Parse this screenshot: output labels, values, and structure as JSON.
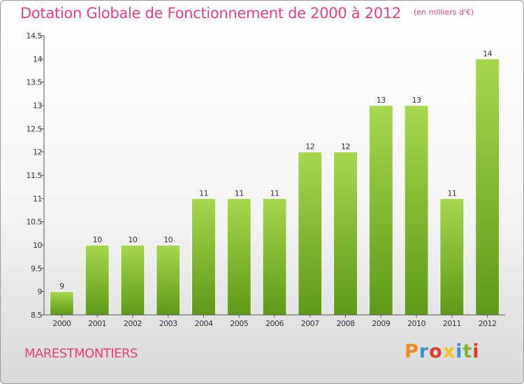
{
  "header": {
    "title": "Dotation Globale de Fonctionnement de 2000 à 2012",
    "unit": "(en milliers d'€)"
  },
  "footer": {
    "commune": "MARESTMONTIERS",
    "logo_letters": [
      "P",
      "r",
      "o",
      "x",
      "i",
      "t",
      "i"
    ]
  },
  "colors": {
    "title": "#e8407a",
    "bar_light": "#a6d84c",
    "bar_dark": "#5e9a18",
    "logo": [
      "#f08a1e",
      "#3a8fd4",
      "#e23a2c",
      "#f2c21e",
      "#3a8fd4",
      "#7ab82a",
      "#e23a2c"
    ]
  },
  "chart_data": {
    "type": "bar",
    "categories": [
      "2000",
      "2001",
      "2002",
      "2003",
      "2004",
      "2005",
      "2006",
      "2007",
      "2008",
      "2009",
      "2010",
      "2011",
      "2012"
    ],
    "values": [
      9,
      10,
      10,
      10,
      11,
      11,
      11,
      12,
      12,
      13,
      13,
      11,
      14
    ],
    "value_labels": [
      "9",
      "10",
      "10",
      "10",
      "11",
      "11",
      "11",
      "12",
      "12",
      "13",
      "13",
      "11",
      "14"
    ],
    "ylim": [
      8.5,
      14.5
    ],
    "yticks": [
      8.5,
      9,
      9.5,
      10,
      10.5,
      11,
      11.5,
      12,
      12.5,
      13,
      13.5,
      14,
      14.5
    ],
    "ytick_labels": [
      "8.5",
      "9",
      "9.5",
      "10",
      "10.5",
      "11",
      "11.5",
      "12",
      "12.5",
      "13",
      "13.5",
      "14",
      "14.5"
    ],
    "grid": false,
    "legend": "none"
  }
}
